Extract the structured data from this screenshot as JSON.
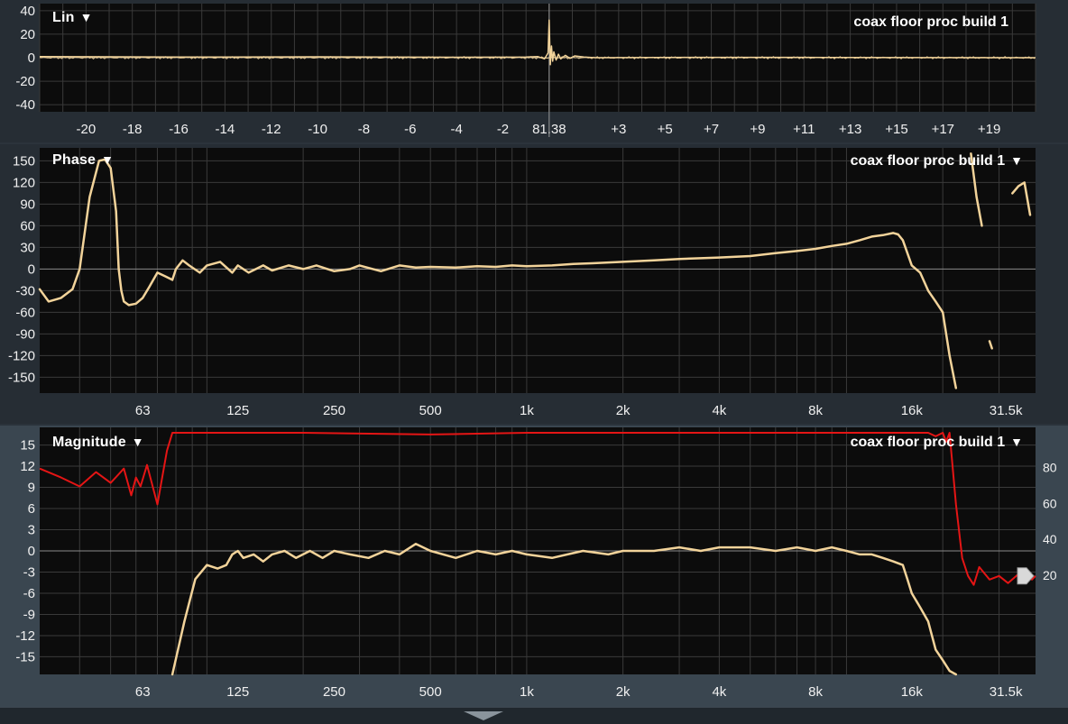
{
  "colors": {
    "plot_bg": "#0c0c0c",
    "grid": "#3a3a3a",
    "zero_line": "#8a8a8a",
    "trace": "#f2d39a",
    "coherence": "#e41515",
    "panel_bg": "#262d34",
    "mag_panel_bg": "#3a4650"
  },
  "lin_plot": {
    "title": "Lin",
    "caret": "▼",
    "trace_name": "coax floor proc build 1",
    "marker_label": "81.38"
  },
  "phase_plot": {
    "title": "Phase",
    "caret": "▼",
    "trace_name": "coax floor proc build 1",
    "trace_caret": "▼"
  },
  "magnitude_plot": {
    "title": "Magnitude",
    "caret": "▼",
    "trace_name": "coax floor proc build 1",
    "trace_caret": "▼"
  },
  "chart_data": [
    {
      "id": "lin",
      "type": "line",
      "title": "Lin",
      "legend": "coax floor proc build 1",
      "legend_position": "top-right",
      "xlim": [
        -22,
        21
      ],
      "ylim": [
        -46,
        46
      ],
      "grid": true,
      "x_ticks": [
        {
          "v": -20,
          "label": "-20"
        },
        {
          "v": -18,
          "label": "-18"
        },
        {
          "v": -16,
          "label": "-16"
        },
        {
          "v": -14,
          "label": "-14"
        },
        {
          "v": -12,
          "label": "-12"
        },
        {
          "v": -10,
          "label": "-10"
        },
        {
          "v": -8,
          "label": "-8"
        },
        {
          "v": -6,
          "label": "-6"
        },
        {
          "v": -4,
          "label": "-4"
        },
        {
          "v": -2,
          "label": "-2"
        },
        {
          "v": 0,
          "label": "81.38"
        },
        {
          "v": 3,
          "label": "+3"
        },
        {
          "v": 5,
          "label": "+5"
        },
        {
          "v": 7,
          "label": "+7"
        },
        {
          "v": 9,
          "label": "+9"
        },
        {
          "v": 11,
          "label": "+11"
        },
        {
          "v": 13,
          "label": "+13"
        },
        {
          "v": 15,
          "label": "+15"
        },
        {
          "v": 17,
          "label": "+17"
        },
        {
          "v": 19,
          "label": "+19"
        }
      ],
      "y_ticks": [
        40,
        20,
        0,
        -20,
        -40
      ],
      "series": [
        {
          "x": [
            -22,
            -16,
            -10,
            -4,
            -1,
            -0.5,
            -0.2,
            -0.05,
            0,
            0.05,
            0.1,
            0.15,
            0.2,
            0.3,
            0.4,
            0.5,
            0.7,
            0.9,
            1.1,
            1.5,
            2,
            6,
            12,
            21
          ],
          "y": [
            1,
            0.5,
            0.8,
            0.4,
            0.5,
            1,
            -1,
            4,
            32,
            -6,
            10,
            -3,
            5,
            -2,
            3,
            -1,
            2,
            -0.5,
            1.5,
            0.5,
            0,
            0.3,
            0.2,
            0
          ]
        }
      ]
    },
    {
      "id": "phase",
      "type": "line",
      "title": "Phase",
      "legend": "coax floor proc build 1",
      "legend_position": "top-right",
      "xscale": "log",
      "xlim": [
        30,
        39000
      ],
      "ylim": [
        -172,
        168
      ],
      "grid": true,
      "x_ticks": [
        {
          "v": 63,
          "label": "63"
        },
        {
          "v": 125,
          "label": "125"
        },
        {
          "v": 250,
          "label": "250"
        },
        {
          "v": 500,
          "label": "500"
        },
        {
          "v": 1000,
          "label": "1k"
        },
        {
          "v": 2000,
          "label": "2k"
        },
        {
          "v": 4000,
          "label": "4k"
        },
        {
          "v": 8000,
          "label": "8k"
        },
        {
          "v": 16000,
          "label": "16k"
        },
        {
          "v": 31500,
          "label": "31.5k"
        }
      ],
      "y_ticks": [
        150,
        120,
        90,
        60,
        30,
        0,
        -30,
        -60,
        -90,
        -120,
        -150
      ],
      "series": [
        {
          "segments": [
            {
              "x": [
                30,
                32,
                35,
                38,
                40,
                43,
                46,
                48,
                50,
                52,
                53,
                54,
                55,
                57,
                60,
                63,
                66,
                70,
                74,
                78,
                80,
                84,
                88,
                95,
                100,
                110,
                120,
                125,
                135,
                150,
                160,
                180,
                200,
                220,
                250,
                280,
                300,
                350,
                400,
                450,
                500,
                600,
                700,
                800,
                900,
                1000,
                1200,
                1400,
                1600,
                2000,
                2500,
                3000,
                3500,
                4000,
                5000,
                6000,
                7000,
                8000,
                9000,
                10000,
                11000,
                12000,
                13000,
                14000,
                14500,
                15000,
                16000,
                17000,
                18000,
                19000,
                20000,
                21000,
                22000
              ],
              "y": [
                -28,
                -45,
                -40,
                -28,
                0,
                100,
                150,
                152,
                140,
                80,
                0,
                -30,
                -45,
                -50,
                -48,
                -40,
                -25,
                -5,
                -10,
                -15,
                0,
                12,
                5,
                -5,
                5,
                10,
                -5,
                5,
                -5,
                5,
                -2,
                5,
                0,
                5,
                -3,
                0,
                5,
                -3,
                5,
                2,
                3,
                2,
                4,
                3,
                5,
                4,
                5,
                7,
                8,
                10,
                12,
                14,
                15,
                16,
                18,
                22,
                25,
                28,
                32,
                35,
                40,
                45,
                47,
                50,
                48,
                40,
                5,
                -5,
                -30,
                -45,
                -60,
                -120,
                -165
              ]
            },
            {
              "x": [
                24500,
                25500,
                26500
              ],
              "y": [
                160,
                100,
                60
              ]
            },
            {
              "x": [
                28000,
                28500
              ],
              "y": [
                -100,
                -110
              ]
            },
            {
              "x": [
                33000,
                34500,
                36000,
                37500
              ],
              "y": [
                105,
                115,
                120,
                75
              ]
            }
          ]
        }
      ]
    },
    {
      "id": "magnitude",
      "type": "line",
      "title": "Magnitude",
      "legend": "coax floor proc build 1",
      "legend_position": "top-right",
      "xscale": "log",
      "xlim": [
        30,
        39000
      ],
      "ylim": [
        -17.5,
        17.5
      ],
      "right_ylim": [
        -35,
        103
      ],
      "grid": true,
      "x_ticks": [
        {
          "v": 63,
          "label": "63"
        },
        {
          "v": 125,
          "label": "125"
        },
        {
          "v": 250,
          "label": "250"
        },
        {
          "v": 500,
          "label": "500"
        },
        {
          "v": 1000,
          "label": "1k"
        },
        {
          "v": 2000,
          "label": "2k"
        },
        {
          "v": 4000,
          "label": "4k"
        },
        {
          "v": 8000,
          "label": "8k"
        },
        {
          "v": 16000,
          "label": "16k"
        },
        {
          "v": 31500,
          "label": "31.5k"
        }
      ],
      "y_ticks": [
        15,
        12,
        9,
        6,
        3,
        0,
        -3,
        -6,
        -9,
        -12,
        -15
      ],
      "right_ticks": [
        80,
        60,
        40,
        20
      ],
      "series": [
        {
          "name": "magnitude",
          "x": [
            78,
            85,
            92,
            100,
            108,
            115,
            120,
            125,
            130,
            140,
            150,
            160,
            175,
            190,
            210,
            230,
            250,
            280,
            320,
            360,
            400,
            450,
            500,
            600,
            700,
            800,
            900,
            1000,
            1200,
            1500,
            1800,
            2000,
            2500,
            3000,
            3500,
            4000,
            5000,
            6000,
            7000,
            8000,
            9000,
            10000,
            11000,
            12000,
            13000,
            14000,
            15000,
            15500,
            16000,
            17000,
            18000,
            19000,
            20000,
            21000,
            22000
          ],
          "y": [
            -17.5,
            -10,
            -4,
            -2,
            -2.5,
            -2,
            -0.5,
            0,
            -1,
            -0.5,
            -1.5,
            -0.5,
            0,
            -1,
            0,
            -1,
            0,
            -0.5,
            -1,
            0,
            -0.5,
            1,
            0,
            -1,
            0,
            -0.5,
            0,
            -0.5,
            -1,
            0,
            -0.5,
            0,
            0,
            0.5,
            0,
            0.5,
            0.5,
            0,
            0.5,
            0,
            0.5,
            0,
            -0.5,
            -0.5,
            -1,
            -1.5,
            -2,
            -4,
            -6,
            -8,
            -10,
            -14,
            -15.5,
            -17,
            -17.5
          ]
        },
        {
          "name": "coherence",
          "axis": "right",
          "x": [
            30,
            35,
            40,
            45,
            50,
            55,
            58,
            60,
            62,
            65,
            70,
            75,
            78,
            80,
            85,
            100,
            200,
            500,
            1000,
            2000,
            5000,
            10000,
            15000,
            18000,
            19000,
            20000,
            20500,
            21000,
            22000,
            23000,
            24000,
            25000,
            26000,
            28000,
            30000,
            32000,
            35000,
            38000,
            39000
          ],
          "y": [
            80,
            75,
            70,
            78,
            72,
            80,
            65,
            75,
            70,
            82,
            60,
            90,
            100,
            100,
            100,
            100,
            100,
            99,
            100,
            100,
            100,
            100,
            100,
            100,
            98,
            100,
            95,
            100,
            60,
            30,
            20,
            15,
            25,
            18,
            20,
            16,
            22,
            18,
            20
          ]
        }
      ]
    }
  ]
}
